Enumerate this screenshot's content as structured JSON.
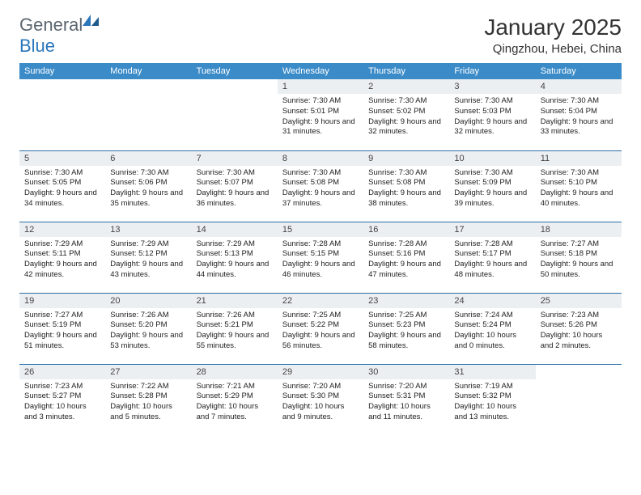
{
  "logo": {
    "text_general": "General",
    "text_blue": "Blue"
  },
  "title": "January 2025",
  "location": "Qingzhou, Hebei, China",
  "colors": {
    "header_bg": "#3b8bc8",
    "header_text": "#ffffff",
    "daynum_bg": "#eceff1",
    "row_border": "#2b6fa8",
    "logo_gray": "#5b6670",
    "logo_blue": "#2b77bb",
    "text": "#222222",
    "background": "#ffffff"
  },
  "weekdays": [
    "Sunday",
    "Monday",
    "Tuesday",
    "Wednesday",
    "Thursday",
    "Friday",
    "Saturday"
  ],
  "weeks": [
    [
      null,
      null,
      null,
      {
        "n": "1",
        "sr": "7:30 AM",
        "ss": "5:01 PM",
        "dl": "9 hours and 31 minutes."
      },
      {
        "n": "2",
        "sr": "7:30 AM",
        "ss": "5:02 PM",
        "dl": "9 hours and 32 minutes."
      },
      {
        "n": "3",
        "sr": "7:30 AM",
        "ss": "5:03 PM",
        "dl": "9 hours and 32 minutes."
      },
      {
        "n": "4",
        "sr": "7:30 AM",
        "ss": "5:04 PM",
        "dl": "9 hours and 33 minutes."
      }
    ],
    [
      {
        "n": "5",
        "sr": "7:30 AM",
        "ss": "5:05 PM",
        "dl": "9 hours and 34 minutes."
      },
      {
        "n": "6",
        "sr": "7:30 AM",
        "ss": "5:06 PM",
        "dl": "9 hours and 35 minutes."
      },
      {
        "n": "7",
        "sr": "7:30 AM",
        "ss": "5:07 PM",
        "dl": "9 hours and 36 minutes."
      },
      {
        "n": "8",
        "sr": "7:30 AM",
        "ss": "5:08 PM",
        "dl": "9 hours and 37 minutes."
      },
      {
        "n": "9",
        "sr": "7:30 AM",
        "ss": "5:08 PM",
        "dl": "9 hours and 38 minutes."
      },
      {
        "n": "10",
        "sr": "7:30 AM",
        "ss": "5:09 PM",
        "dl": "9 hours and 39 minutes."
      },
      {
        "n": "11",
        "sr": "7:30 AM",
        "ss": "5:10 PM",
        "dl": "9 hours and 40 minutes."
      }
    ],
    [
      {
        "n": "12",
        "sr": "7:29 AM",
        "ss": "5:11 PM",
        "dl": "9 hours and 42 minutes."
      },
      {
        "n": "13",
        "sr": "7:29 AM",
        "ss": "5:12 PM",
        "dl": "9 hours and 43 minutes."
      },
      {
        "n": "14",
        "sr": "7:29 AM",
        "ss": "5:13 PM",
        "dl": "9 hours and 44 minutes."
      },
      {
        "n": "15",
        "sr": "7:28 AM",
        "ss": "5:15 PM",
        "dl": "9 hours and 46 minutes."
      },
      {
        "n": "16",
        "sr": "7:28 AM",
        "ss": "5:16 PM",
        "dl": "9 hours and 47 minutes."
      },
      {
        "n": "17",
        "sr": "7:28 AM",
        "ss": "5:17 PM",
        "dl": "9 hours and 48 minutes."
      },
      {
        "n": "18",
        "sr": "7:27 AM",
        "ss": "5:18 PM",
        "dl": "9 hours and 50 minutes."
      }
    ],
    [
      {
        "n": "19",
        "sr": "7:27 AM",
        "ss": "5:19 PM",
        "dl": "9 hours and 51 minutes."
      },
      {
        "n": "20",
        "sr": "7:26 AM",
        "ss": "5:20 PM",
        "dl": "9 hours and 53 minutes."
      },
      {
        "n": "21",
        "sr": "7:26 AM",
        "ss": "5:21 PM",
        "dl": "9 hours and 55 minutes."
      },
      {
        "n": "22",
        "sr": "7:25 AM",
        "ss": "5:22 PM",
        "dl": "9 hours and 56 minutes."
      },
      {
        "n": "23",
        "sr": "7:25 AM",
        "ss": "5:23 PM",
        "dl": "9 hours and 58 minutes."
      },
      {
        "n": "24",
        "sr": "7:24 AM",
        "ss": "5:24 PM",
        "dl": "10 hours and 0 minutes."
      },
      {
        "n": "25",
        "sr": "7:23 AM",
        "ss": "5:26 PM",
        "dl": "10 hours and 2 minutes."
      }
    ],
    [
      {
        "n": "26",
        "sr": "7:23 AM",
        "ss": "5:27 PM",
        "dl": "10 hours and 3 minutes."
      },
      {
        "n": "27",
        "sr": "7:22 AM",
        "ss": "5:28 PM",
        "dl": "10 hours and 5 minutes."
      },
      {
        "n": "28",
        "sr": "7:21 AM",
        "ss": "5:29 PM",
        "dl": "10 hours and 7 minutes."
      },
      {
        "n": "29",
        "sr": "7:20 AM",
        "ss": "5:30 PM",
        "dl": "10 hours and 9 minutes."
      },
      {
        "n": "30",
        "sr": "7:20 AM",
        "ss": "5:31 PM",
        "dl": "10 hours and 11 minutes."
      },
      {
        "n": "31",
        "sr": "7:19 AM",
        "ss": "5:32 PM",
        "dl": "10 hours and 13 minutes."
      },
      null
    ]
  ],
  "labels": {
    "sunrise": "Sunrise:",
    "sunset": "Sunset:",
    "daylight": "Daylight:"
  }
}
